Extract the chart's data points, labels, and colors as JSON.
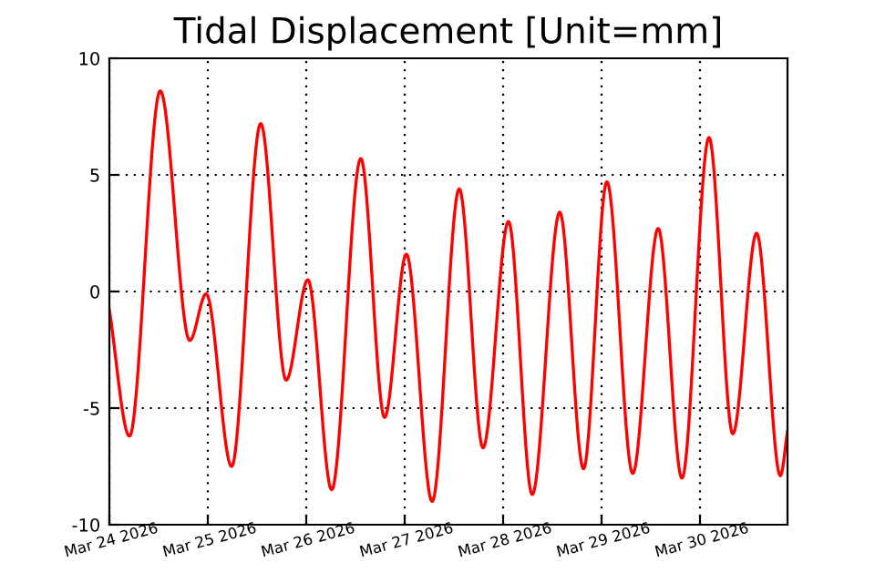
{
  "chart_data": {
    "type": "line",
    "title": "Tidal Displacement [Unit=mm]",
    "x": [
      "2026-03-24T00:00",
      "2026-03-24T04:54",
      "2026-03-24T12:24",
      "2026-03-24T19:36",
      "2026-03-24T23:36",
      "2026-03-25T05:48",
      "2026-03-25T12:54",
      "2026-03-25T19:06",
      "2026-03-26T00:24",
      "2026-03-26T06:12",
      "2026-03-26T13:18",
      "2026-03-26T19:06",
      "2026-03-27T00:24",
      "2026-03-27T06:42",
      "2026-03-27T13:18",
      "2026-03-27T19:06",
      "2026-03-28T01:18",
      "2026-03-28T07:06",
      "2026-03-28T13:48",
      "2026-03-28T19:36",
      "2026-03-29T01:18",
      "2026-03-29T07:36",
      "2026-03-29T13:48",
      "2026-03-29T19:36",
      "2026-03-30T02:12",
      "2026-03-30T08:00",
      "2026-03-30T13:48",
      "2026-03-30T19:36",
      "2026-03-30T21:20"
    ],
    "series": [
      {
        "color": "#ff0000",
        "values": [
          -0.8,
          -6.2,
          8.6,
          -2.1,
          -0.1,
          -7.5,
          7.2,
          -3.8,
          0.5,
          -8.5,
          5.7,
          -5.4,
          1.6,
          -9.0,
          4.4,
          -6.7,
          3.0,
          -8.7,
          3.4,
          -7.6,
          4.7,
          -7.8,
          2.7,
          -8.0,
          6.6,
          -6.1,
          2.5,
          -7.9,
          -6.0
        ]
      }
    ],
    "xlim": [
      "2026-03-24T00:00",
      "2026-03-30T21:20"
    ],
    "xticks": [
      {
        "value": "2026-03-24",
        "label": "Mar 24 2026"
      },
      {
        "value": "2026-03-25",
        "label": "Mar 25 2026"
      },
      {
        "value": "2026-03-26",
        "label": "Mar 26 2026"
      },
      {
        "value": "2026-03-27",
        "label": "Mar 27 2026"
      },
      {
        "value": "2026-03-28",
        "label": "Mar 28 2026"
      },
      {
        "value": "2026-03-29",
        "label": "Mar 29 2026"
      },
      {
        "value": "2026-03-30",
        "label": "Mar 30 2026"
      }
    ],
    "ylim": [
      -10,
      10
    ],
    "yticks": [
      -10,
      -5,
      0,
      5,
      10
    ],
    "grid": true,
    "line_style": "solid",
    "legend": false
  }
}
